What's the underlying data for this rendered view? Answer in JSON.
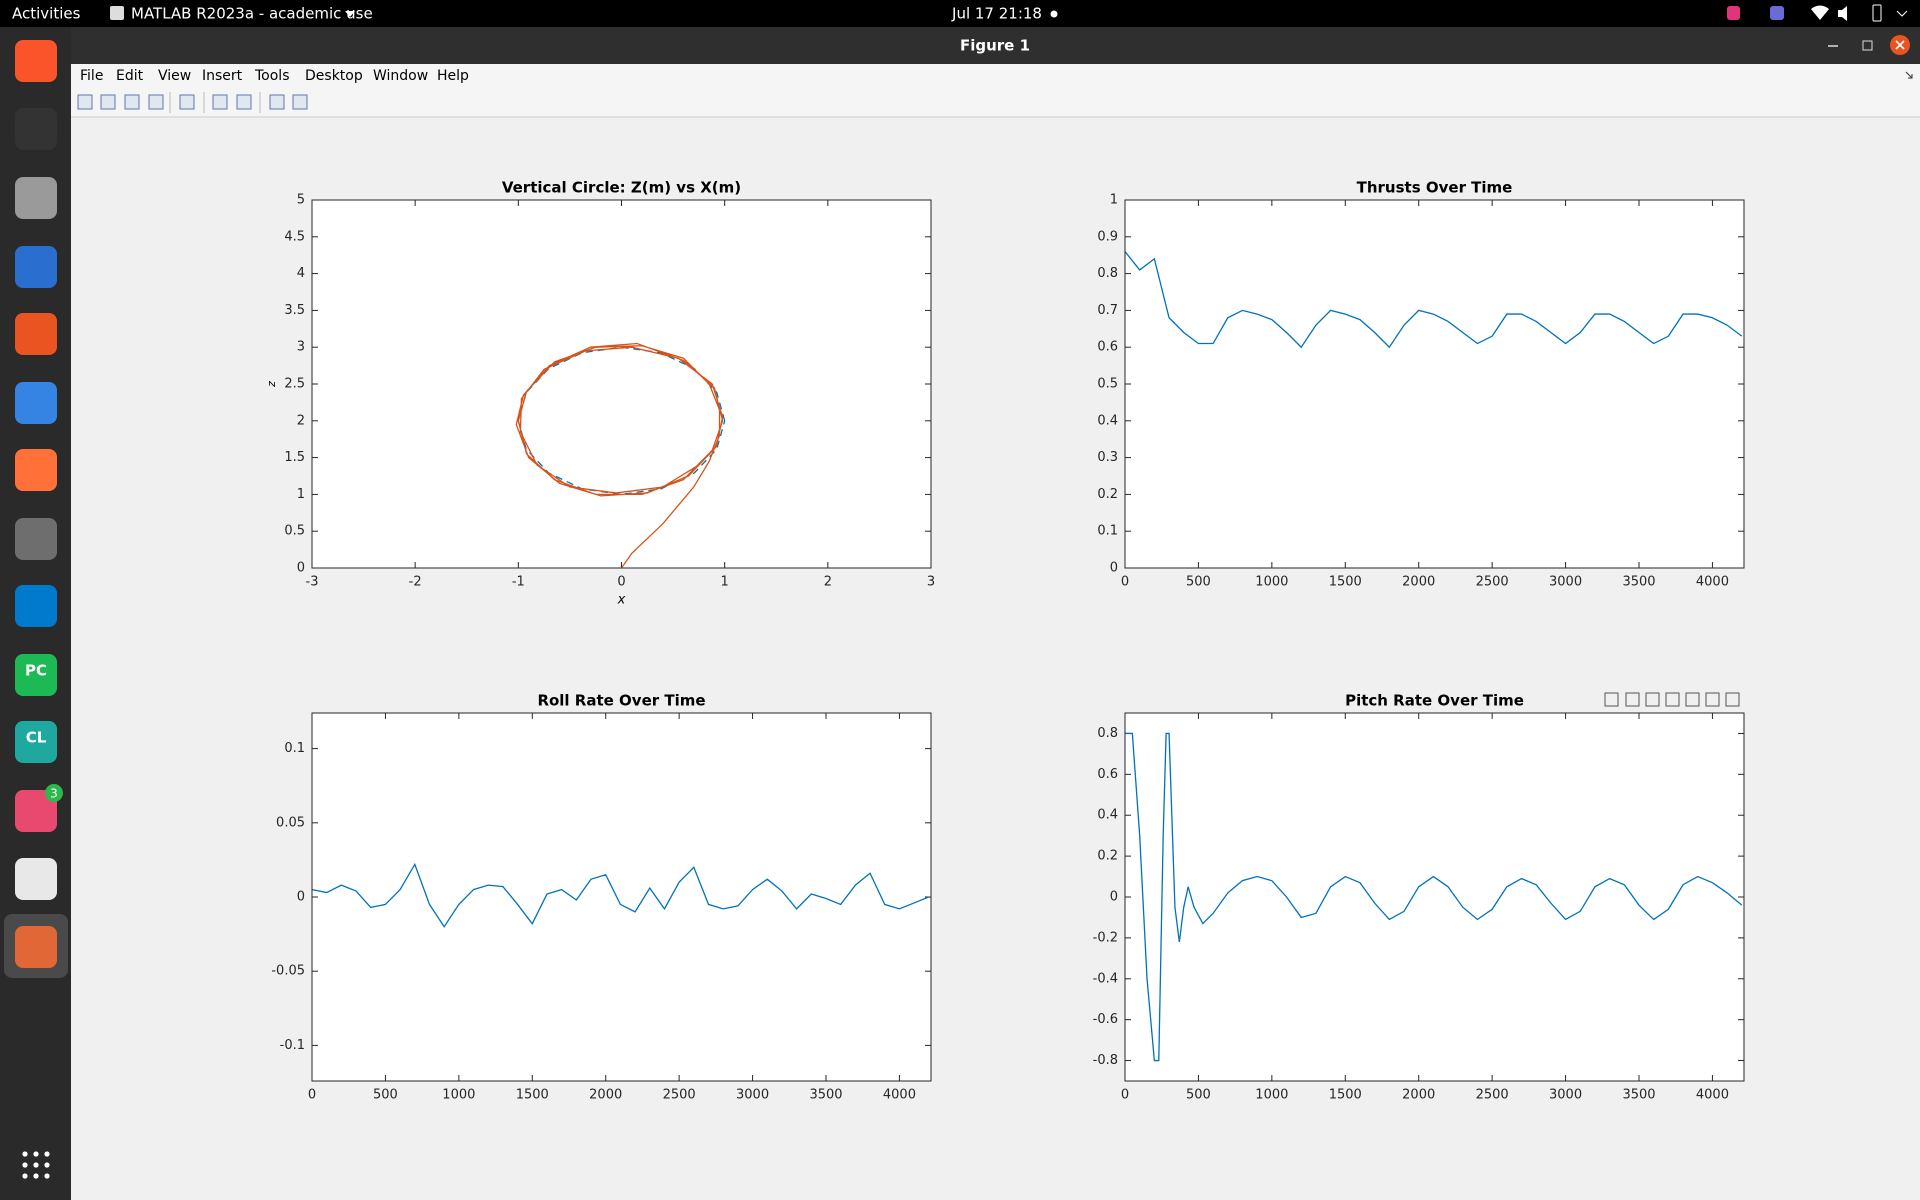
{
  "top_bar": {
    "activities": "Activities",
    "app": "MATLAB R2023a - academic use",
    "clock": "Jul 17  21:18"
  },
  "window": {
    "title": "Figure 1",
    "menu": [
      "File",
      "Edit",
      "View",
      "Insert",
      "Tools",
      "Desktop",
      "Window",
      "Help"
    ]
  },
  "dock": {
    "labels": [
      "PC",
      "CL"
    ],
    "badge": 3
  },
  "chart_data": [
    {
      "type": "line",
      "title": "Vertical Circle: Z(m) vs X(m)",
      "xlabel": "x",
      "ylabel": "z",
      "xlim": [
        -3,
        3
      ],
      "ylim": [
        0,
        5
      ],
      "xticks": [
        -3,
        -2,
        -1,
        0,
        1,
        2,
        3
      ],
      "yticks": [
        0,
        0.5,
        1,
        1.5,
        2,
        2.5,
        3,
        3.5,
        4,
        4.5,
        5
      ],
      "series": [
        {
          "color": "#0072bd",
          "line_style": "dashed",
          "x": [
            1,
            0.924,
            0.707,
            0.383,
            0,
            -0.383,
            -0.707,
            -0.924,
            -1,
            -0.924,
            -0.707,
            -0.383,
            0,
            0.383,
            0.707,
            0.924,
            1
          ],
          "values": [
            2,
            2.383,
            2.707,
            2.924,
            3,
            2.924,
            2.707,
            2.383,
            2,
            1.617,
            1.293,
            1.076,
            1,
            1.076,
            1.293,
            1.617,
            2
          ]
        },
        {
          "color": "#d95319",
          "line_style": "solid",
          "x": [
            0,
            0.1,
            0.25,
            0.4,
            0.55,
            0.7,
            0.85,
            0.95,
            0.95,
            0.85,
            0.6,
            0.2,
            -0.25,
            -0.65,
            -0.92,
            -1.0,
            -0.92,
            -0.65,
            -0.25,
            0.2,
            0.6,
            0.88,
            0.98,
            0.9,
            0.6,
            0.15,
            -0.3,
            -0.7,
            -0.95,
            -1.02,
            -0.9,
            -0.6,
            -0.2,
            0.25,
            0.65,
            0.92,
            0.98,
            0.88,
            0.55,
            0.1,
            -0.35,
            -0.75,
            -0.97,
            -0.98,
            -0.82,
            -0.5,
            -0.05,
            0.4,
            0.75
          ],
          "values": [
            0,
            0.2,
            0.4,
            0.6,
            0.85,
            1.1,
            1.45,
            1.8,
            2.15,
            2.5,
            2.85,
            3.02,
            3.0,
            2.8,
            2.4,
            2.0,
            1.55,
            1.2,
            1.0,
            1.0,
            1.2,
            1.6,
            2.0,
            2.45,
            2.82,
            3.05,
            3.0,
            2.75,
            2.35,
            1.95,
            1.5,
            1.15,
            0.98,
            1.02,
            1.25,
            1.65,
            2.05,
            2.5,
            2.85,
            3.0,
            2.95,
            2.7,
            2.3,
            1.85,
            1.4,
            1.1,
            1.02,
            1.1,
            1.4
          ]
        }
      ]
    },
    {
      "type": "line",
      "title": "Thrusts Over Time",
      "xlim": [
        0,
        4215
      ],
      "ylim": [
        0,
        1
      ],
      "xticks": [
        0,
        500,
        1000,
        1500,
        2000,
        2500,
        3000,
        3500,
        4000
      ],
      "yticks": [
        0,
        0.1,
        0.2,
        0.3,
        0.4,
        0.5,
        0.6,
        0.7,
        0.8,
        0.9,
        1
      ],
      "series": [
        {
          "color": "#0072bd",
          "line_style": "solid",
          "x": [
            0,
            100,
            200,
            300,
            400,
            500,
            600,
            700,
            800,
            900,
            1000,
            1100,
            1200,
            1300,
            1400,
            1500,
            1600,
            1700,
            1800,
            1900,
            2000,
            2100,
            2200,
            2300,
            2400,
            2500,
            2600,
            2700,
            2800,
            2900,
            3000,
            3100,
            3200,
            3300,
            3400,
            3500,
            3600,
            3700,
            3800,
            3900,
            4000,
            4100,
            4200
          ],
          "values": [
            0.86,
            0.81,
            0.84,
            0.68,
            0.64,
            0.61,
            0.61,
            0.68,
            0.7,
            0.69,
            0.675,
            0.64,
            0.6,
            0.66,
            0.7,
            0.69,
            0.675,
            0.64,
            0.6,
            0.66,
            0.7,
            0.69,
            0.67,
            0.64,
            0.61,
            0.63,
            0.69,
            0.69,
            0.67,
            0.64,
            0.61,
            0.64,
            0.69,
            0.69,
            0.67,
            0.64,
            0.61,
            0.63,
            0.69,
            0.69,
            0.68,
            0.66,
            0.63
          ]
        }
      ]
    },
    {
      "type": "line",
      "title": "Roll Rate Over Time",
      "xlim": [
        0,
        4215
      ],
      "ylim": [
        -0.124,
        0.124
      ],
      "xticks": [
        0,
        500,
        1000,
        1500,
        2000,
        2500,
        3000,
        3500,
        4000
      ],
      "yticks": [
        -0.1,
        -0.05,
        0,
        0.05,
        0.1
      ],
      "series": [
        {
          "color": "#0072bd",
          "line_style": "solid",
          "x": [
            0,
            100,
            200,
            300,
            400,
            500,
            600,
            700,
            800,
            900,
            1000,
            1100,
            1200,
            1300,
            1400,
            1500,
            1600,
            1700,
            1800,
            1900,
            2000,
            2100,
            2200,
            2300,
            2400,
            2500,
            2600,
            2700,
            2800,
            2900,
            3000,
            3100,
            3200,
            3300,
            3400,
            3500,
            3600,
            3700,
            3800,
            3900,
            4000,
            4100,
            4200
          ],
          "values": [
            0.005,
            0.003,
            0.008,
            0.004,
            -0.007,
            -0.005,
            0.005,
            0.022,
            -0.005,
            -0.02,
            -0.005,
            0.005,
            0.008,
            0.007,
            -0.005,
            -0.018,
            0.002,
            0.005,
            -0.002,
            0.012,
            0.015,
            -0.005,
            -0.01,
            0.006,
            -0.008,
            0.01,
            0.02,
            -0.005,
            -0.008,
            -0.006,
            0.005,
            0.012,
            0.004,
            -0.008,
            0.002,
            -0.001,
            -0.005,
            0.008,
            0.016,
            -0.005,
            -0.008,
            -0.004,
            0
          ]
        }
      ]
    },
    {
      "type": "line",
      "title": "Pitch Rate Over Time",
      "xlim": [
        0,
        4215
      ],
      "ylim": [
        -0.9,
        0.9
      ],
      "xticks": [
        0,
        500,
        1000,
        1500,
        2000,
        2500,
        3000,
        3500,
        4000
      ],
      "yticks": [
        -0.8,
        -0.6,
        -0.4,
        -0.2,
        0,
        0.2,
        0.4,
        0.6,
        0.8
      ],
      "series": [
        {
          "color": "#0072bd",
          "line_style": "solid",
          "x": [
            0,
            50,
            100,
            150,
            200,
            230,
            260,
            280,
            300,
            340,
            370,
            400,
            430,
            470,
            530,
            600,
            700,
            800,
            900,
            1000,
            1100,
            1200,
            1300,
            1400,
            1500,
            1600,
            1700,
            1800,
            1900,
            2000,
            2100,
            2200,
            2300,
            2400,
            2500,
            2600,
            2700,
            2800,
            2900,
            3000,
            3100,
            3200,
            3300,
            3400,
            3500,
            3600,
            3700,
            3800,
            3900,
            4000,
            4100,
            4200
          ],
          "values": [
            0.8,
            0.8,
            0.3,
            -0.4,
            -0.8,
            -0.8,
            0.3,
            0.8,
            0.8,
            -0.05,
            -0.22,
            -0.05,
            0.05,
            -0.05,
            -0.13,
            -0.08,
            0.02,
            0.08,
            0.1,
            0.08,
            0,
            -0.1,
            -0.08,
            0.05,
            0.1,
            0.07,
            -0.03,
            -0.11,
            -0.07,
            0.05,
            0.1,
            0.05,
            -0.05,
            -0.11,
            -0.06,
            0.05,
            0.09,
            0.06,
            -0.03,
            -0.11,
            -0.07,
            0.05,
            0.09,
            0.06,
            -0.04,
            -0.11,
            -0.06,
            0.06,
            0.1,
            0.07,
            0.02,
            -0.04
          ]
        }
      ]
    }
  ]
}
